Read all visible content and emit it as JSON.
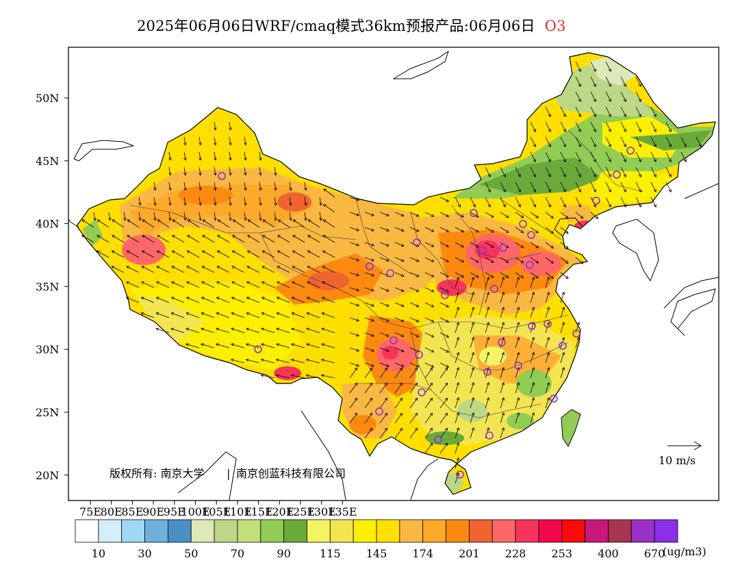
{
  "title": {
    "text": "2025年06月06日WRF/cmaq模式36km预报产品:06月06日",
    "pollutant": "O3"
  },
  "colors": {
    "pollutant_label": "#e03030",
    "frame": "#000000",
    "station_marker": "#8a2be2"
  },
  "axes": {
    "lat_ticks": [
      "50N",
      "45N",
      "40N",
      "35N",
      "30N",
      "25N",
      "20N"
    ],
    "lon_ticks": [
      "75E",
      "80E",
      "85E",
      "90E",
      "95E",
      "100E",
      "105E",
      "110E",
      "115E",
      "120E",
      "125E",
      "130E",
      "135E"
    ],
    "lon_range": [
      73,
      135
    ],
    "lat_range": [
      18,
      54
    ]
  },
  "wind_reference": {
    "label": "10 m/s"
  },
  "copyright": {
    "text": "版权所有: 南京大学",
    "separator": "|",
    "org": "南京创蓝科技有限公司"
  },
  "colorbar": {
    "unit": "(ug/m3)",
    "swatches": [
      "#ffffff",
      "#d4edfa",
      "#9fd8f2",
      "#6db0de",
      "#4a8fc4",
      "#dde9b8",
      "#bcd785",
      "#c2df7c",
      "#92cc55",
      "#6aaa3a",
      "#f3f364",
      "#f3e452",
      "#fcef00",
      "#fedf00",
      "#f9b841",
      "#fda92a",
      "#fc8a10",
      "#f06430",
      "#fd6767",
      "#f7345b",
      "#f3074c",
      "#fb0a0a",
      "#c8187d",
      "#a8344f",
      "#9a32c8",
      "#8d2ee8"
    ],
    "labels": [
      "10",
      "30",
      "50",
      "70",
      "90",
      "115",
      "145",
      "174",
      "201",
      "228",
      "253",
      "400",
      "670"
    ]
  }
}
